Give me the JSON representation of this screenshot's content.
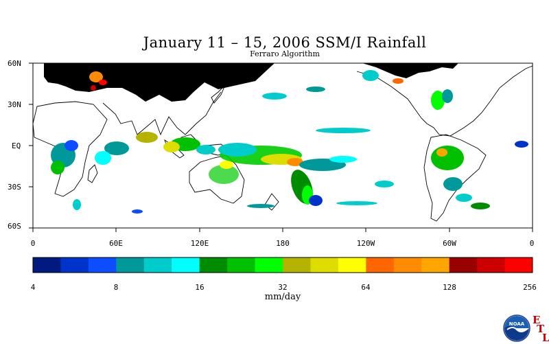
{
  "title": "January 11 – 15, 2006 SSM/I Rainfall",
  "subtitle": "Ferraro Algorithm",
  "map": {
    "lat_labels": [
      "60N",
      "30N",
      "EQ",
      "30S",
      "60S"
    ],
    "lon_labels": [
      "0",
      "60E",
      "120E",
      "180",
      "120W",
      "60W",
      "0"
    ],
    "lat_range": [
      -60,
      60
    ],
    "lon_range": [
      0,
      360
    ]
  },
  "colorbar": {
    "units": "mm/day",
    "tick_labels": [
      "4",
      "8",
      "16",
      "32",
      "64",
      "128",
      "256"
    ],
    "colors": [
      "#001a80",
      "#0033cc",
      "#0d4dff",
      "#009999",
      "#00cccc",
      "#00ffff",
      "#008c00",
      "#00c000",
      "#00ff00",
      "#b3b300",
      "#dddd00",
      "#ffff00",
      "#ff6600",
      "#ff8c00",
      "#ffa500",
      "#990000",
      "#cc0000",
      "#ff0000"
    ]
  },
  "logo": {
    "text": "NOAA",
    "etl_letters": [
      "E",
      "T",
      "L"
    ]
  }
}
